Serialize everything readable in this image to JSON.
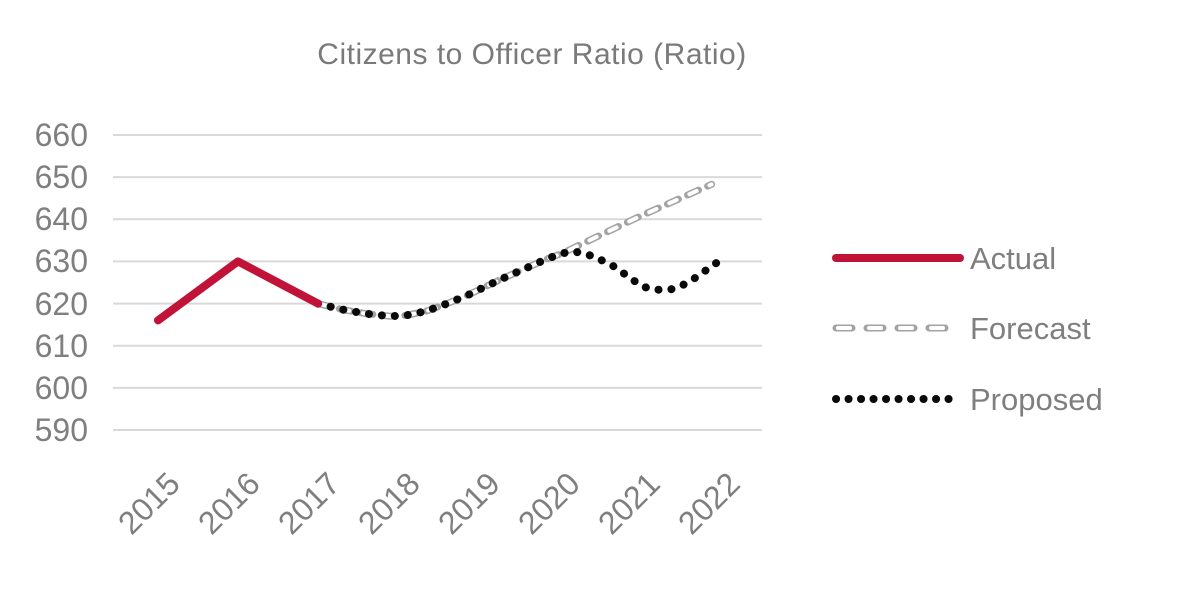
{
  "title": "Citizens to Officer Ratio (Ratio)",
  "colors": {
    "background": "#ffffff",
    "title_text": "#7a7a7a",
    "axis_text": "#7f7f7f",
    "legend_text": "#7f7f7f",
    "gridline": "#d9d9d9",
    "actual_line": "#c11238",
    "forecast_outline": "#a3a3a3",
    "forecast_inner": "#ffffff",
    "proposed_dots": "#0a0a0a"
  },
  "chart_data": {
    "type": "line",
    "title": "Citizens to Officer Ratio (Ratio)",
    "xlabel": "",
    "ylabel": "",
    "x_tick_labels": [
      "2015",
      "2016",
      "2017",
      "2018",
      "2019",
      "2020",
      "2021",
      "2022"
    ],
    "y_tick_labels": [
      "660",
      "650",
      "640",
      "630",
      "620",
      "610",
      "600",
      "590"
    ],
    "ylim": [
      590,
      660
    ],
    "grid": "horizontal",
    "legend_position": "right",
    "annual_values": {
      "Actual": {
        "2015": 616,
        "2016": 630,
        "2017": 620
      },
      "Forecast": {
        "2017": 620,
        "2018": 617,
        "2019": 624.5,
        "2020": 632,
        "2021": 640.5,
        "2022": 648
      },
      "Proposed": {
        "2017": 620,
        "2018": 617,
        "2019": 624.5,
        "2020": 632,
        "2021": 624,
        "2022": 630.5
      }
    },
    "series": [
      {
        "name": "Actual",
        "line_style": "solid",
        "color": "#c11238",
        "points": [
          [
            2015,
            616
          ],
          [
            2016,
            630
          ],
          [
            2017,
            620
          ]
        ]
      },
      {
        "name": "Forecast",
        "line_style": "dashed-hollow",
        "color": "#a3a3a3",
        "points": [
          [
            2017,
            620
          ],
          [
            2017.3,
            618.6
          ],
          [
            2017.6,
            617.6
          ],
          [
            2017.9,
            617.0
          ],
          [
            2018.1,
            617.2
          ],
          [
            2018.35,
            618.2
          ],
          [
            2018.6,
            619.9
          ],
          [
            2018.85,
            621.8
          ],
          [
            2019.1,
            624.1
          ],
          [
            2019.35,
            626.3
          ],
          [
            2019.6,
            628.4
          ],
          [
            2019.85,
            630.5
          ],
          [
            2020.05,
            631.9
          ],
          [
            2021.0,
            640.5
          ],
          [
            2021.92,
            648.3
          ]
        ]
      },
      {
        "name": "Proposed",
        "line_style": "dotted",
        "color": "#0a0a0a",
        "points": [
          [
            2017,
            620
          ],
          [
            2017.3,
            618.6
          ],
          [
            2017.6,
            617.6
          ],
          [
            2017.9,
            617.0
          ],
          [
            2018.1,
            617.2
          ],
          [
            2018.35,
            618.2
          ],
          [
            2018.6,
            619.9
          ],
          [
            2018.85,
            621.8
          ],
          [
            2019.1,
            624.1
          ],
          [
            2019.35,
            626.3
          ],
          [
            2019.6,
            628.4
          ],
          [
            2019.85,
            630.5
          ],
          [
            2020.05,
            631.9
          ],
          [
            2020.2,
            632.4
          ],
          [
            2020.45,
            631.2
          ],
          [
            2020.7,
            628.8
          ],
          [
            2020.9,
            626.1
          ],
          [
            2021.05,
            624.1
          ],
          [
            2021.2,
            623.3
          ],
          [
            2021.4,
            623.3
          ],
          [
            2021.55,
            624.3
          ],
          [
            2021.7,
            625.9
          ],
          [
            2021.82,
            627.5
          ],
          [
            2021.95,
            629.3
          ],
          [
            2022.05,
            630.4
          ]
        ]
      }
    ]
  }
}
